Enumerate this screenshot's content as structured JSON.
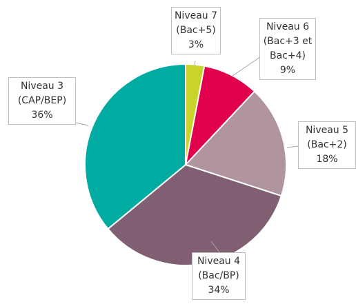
{
  "chart_data": {
    "type": "pie",
    "categories": [
      "Niveau 7",
      "Niveau 6",
      "Niveau 5",
      "Niveau 4",
      "Niveau 3"
    ],
    "descriptions": [
      "(Bac+5)",
      "(Bac+3 et Bac+4)",
      "(Bac+2)",
      "(Bac/BP)",
      "(CAP/BEP)"
    ],
    "values": [
      3,
      9,
      18,
      34,
      36
    ],
    "value_labels": [
      "3%",
      "9%",
      "18%",
      "34%",
      "36%"
    ],
    "colors": [
      "#c8d42a",
      "#e0004d",
      "#b0949f",
      "#7f5f71",
      "#00aba1"
    ]
  }
}
